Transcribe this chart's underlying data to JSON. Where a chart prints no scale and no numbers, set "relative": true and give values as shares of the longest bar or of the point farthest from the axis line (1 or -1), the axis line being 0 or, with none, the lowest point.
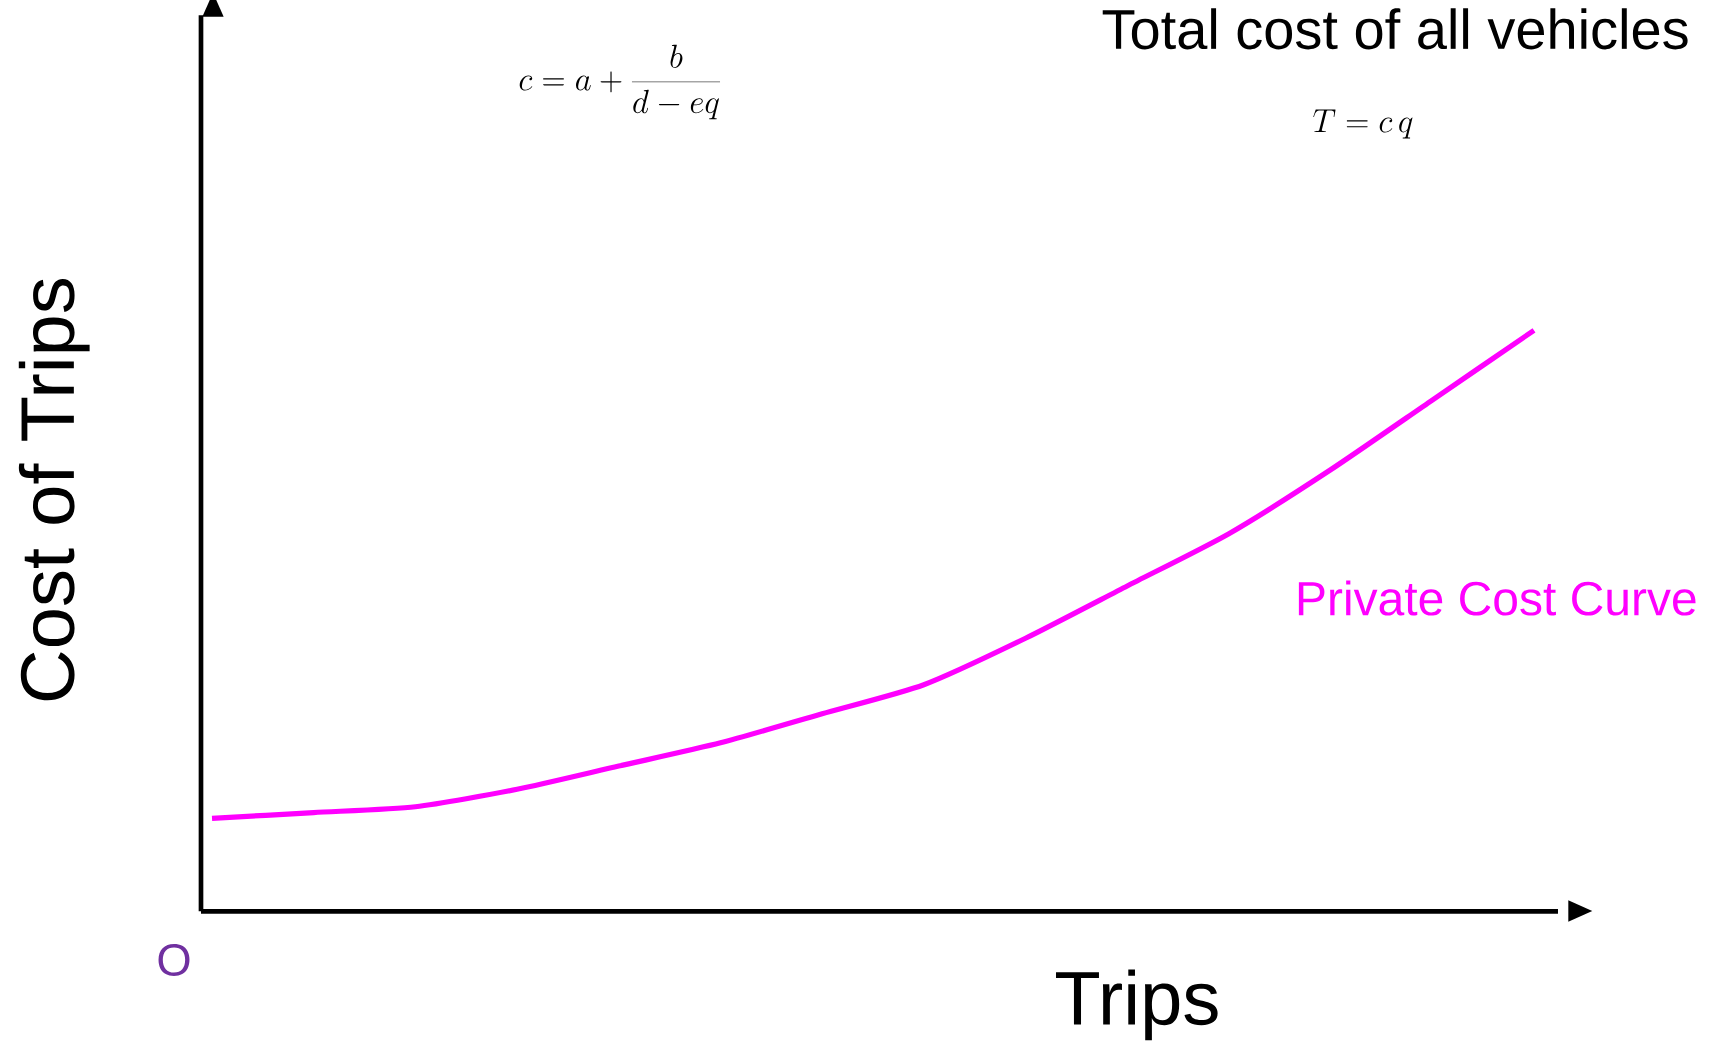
{
  "chart_data": {
    "type": "line",
    "relative": true,
    "xlabel": "Trips",
    "ylabel": "Cost of Trips",
    "categories": [
      null,
      null,
      null,
      null,
      null,
      null,
      null,
      null,
      null,
      null,
      null,
      null,
      null,
      null
    ],
    "series": [
      {
        "name": "Private Cost Curve",
        "color": "#ff00ff",
        "values": [
          0.16,
          0.17,
          0.18,
          0.21,
          0.25,
          0.29,
          0.34,
          0.39,
          0.47,
          0.56,
          0.65,
          0.76,
          0.88,
          1.0
        ]
      }
    ],
    "annotations": [
      "O",
      "c = a + \\frac{b}{d - e q}",
      "T = c\\, q",
      "Total cost of all vehicles"
    ],
    "legend": false,
    "marker": "none",
    "line_style": "solid"
  }
}
